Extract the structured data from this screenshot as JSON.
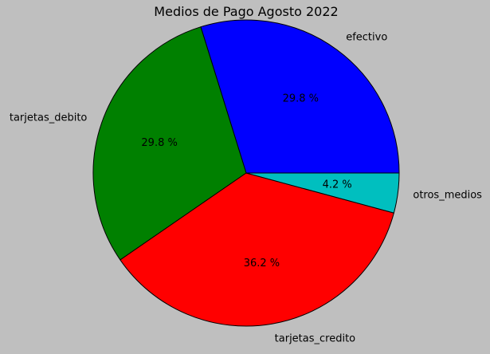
{
  "chart_data": {
    "type": "pie",
    "title": "Medios de Pago Agosto 2022",
    "slices": [
      {
        "label": "efectivo",
        "percent_text": "29.8 %",
        "value": 29.8,
        "color": "#0000ff"
      },
      {
        "label": "tarjetas_debito",
        "percent_text": "29.8 %",
        "value": 29.8,
        "color": "#008000"
      },
      {
        "label": "tarjetas_credito",
        "percent_text": "36.2 %",
        "value": 36.2,
        "color": "#ff0000"
      },
      {
        "label": "otros_medios",
        "percent_text": "4.2 %",
        "value": 4.2,
        "color": "#00bfbf"
      }
    ],
    "start_angle_deg": 0,
    "direction": "counterclockwise",
    "background_color": "#bfbfbf",
    "edge_color": "#000000"
  }
}
